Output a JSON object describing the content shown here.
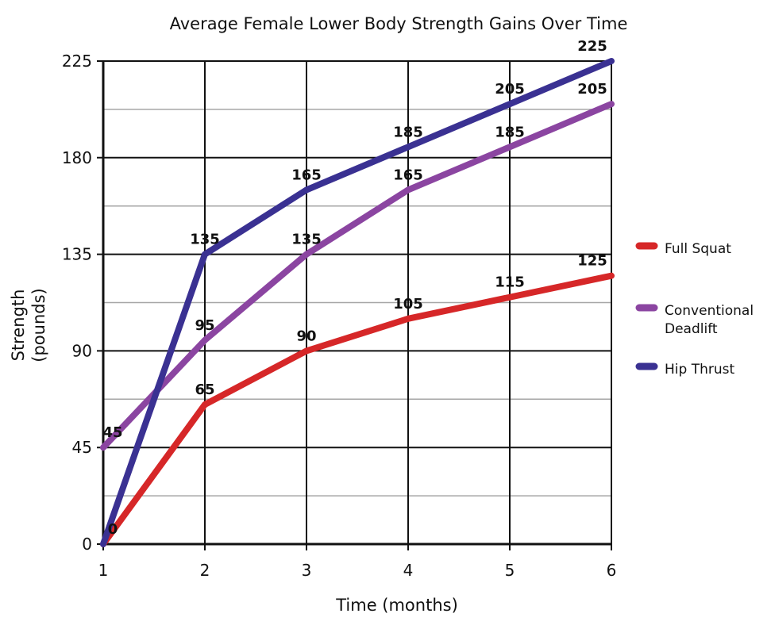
{
  "chart_data": {
    "type": "line",
    "title": "Average Female Lower Body Strength Gains Over Time",
    "xlabel": "Time (months)",
    "ylabel_lines": [
      "Strength",
      "(pounds)"
    ],
    "x": [
      1,
      2,
      3,
      4,
      5,
      6
    ],
    "x_tick_labels": [
      "1",
      "2",
      "3",
      "4",
      "5",
      "6"
    ],
    "y_tick_labels": [
      "0",
      "45",
      "90",
      "135",
      "180",
      "225"
    ],
    "y_ticks": [
      0,
      45,
      90,
      135,
      180,
      225
    ],
    "ylim": [
      0,
      225
    ],
    "xlim": [
      1,
      6
    ],
    "grid": true,
    "legend_position": "right",
    "series": [
      {
        "name": "Full Squat",
        "color": "#d62728",
        "values": [
          0,
          65,
          90,
          105,
          115,
          125
        ],
        "labels": [
          "0",
          "65",
          "90",
          "105",
          "115",
          "125"
        ],
        "legend_lines": [
          "Full Squat"
        ]
      },
      {
        "name": "Conventional Deadlift",
        "color": "#8b45a1",
        "values": [
          45,
          95,
          135,
          165,
          185,
          205
        ],
        "labels": [
          "45",
          "95",
          "135",
          "165",
          "185",
          "205"
        ],
        "legend_lines": [
          "Conventional",
          "Deadlift"
        ]
      },
      {
        "name": "Hip Thrust",
        "color": "#3a3192",
        "values": [
          0,
          135,
          165,
          185,
          205,
          225
        ],
        "labels": [
          "",
          "135",
          "165",
          "185",
          "205",
          "225"
        ],
        "legend_lines": [
          "Hip Thrust"
        ]
      }
    ]
  }
}
